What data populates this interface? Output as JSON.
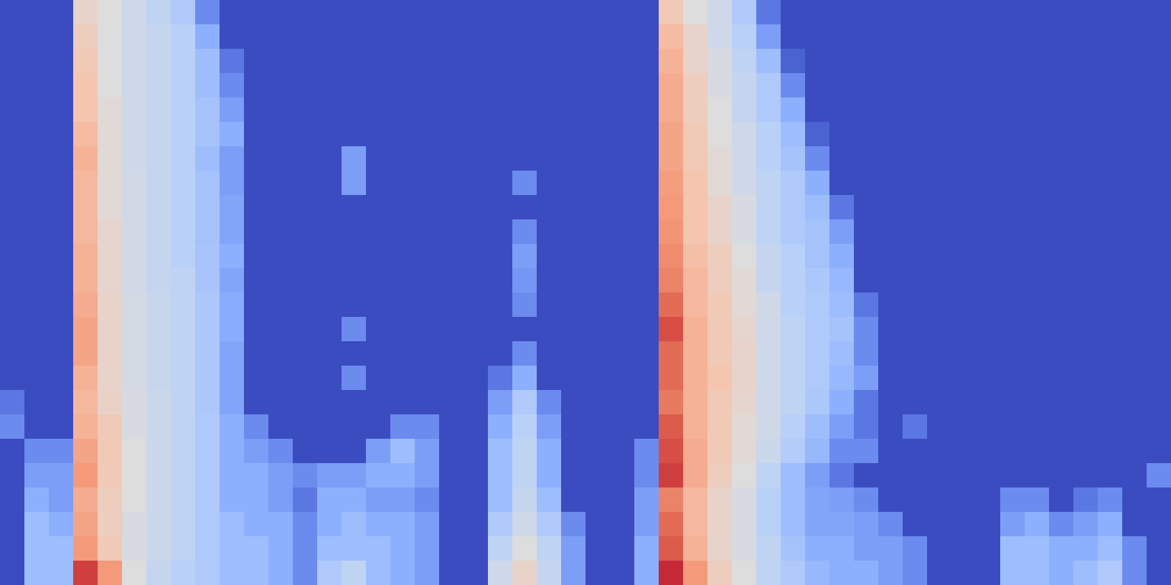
{
  "chart_data": {
    "type": "heatmap",
    "tick_labels": false,
    "xlim": [
      0,
      48
    ],
    "ylim": [
      0,
      24
    ],
    "zlim": [
      0,
      100
    ],
    "cells": [
      [
        0,
        0,
        0,
        55,
        50,
        45,
        40,
        35,
        15,
        0,
        0,
        0,
        0,
        0,
        0,
        0,
        0,
        0,
        0,
        0,
        0,
        0,
        0,
        0,
        0,
        0,
        0,
        60,
        50,
        45,
        35,
        10,
        0,
        0,
        0,
        0,
        0,
        0,
        0,
        0,
        0,
        0,
        0,
        0,
        0,
        0,
        0,
        0
      ],
      [
        0,
        0,
        0,
        58,
        50,
        45,
        42,
        38,
        25,
        0,
        0,
        0,
        0,
        0,
        0,
        0,
        0,
        0,
        0,
        0,
        0,
        0,
        0,
        0,
        0,
        0,
        0,
        65,
        55,
        45,
        38,
        20,
        0,
        0,
        0,
        0,
        0,
        0,
        0,
        0,
        0,
        0,
        0,
        0,
        0,
        0,
        0,
        0
      ],
      [
        0,
        0,
        0,
        60,
        50,
        45,
        42,
        38,
        30,
        10,
        0,
        0,
        0,
        0,
        0,
        0,
        0,
        0,
        0,
        0,
        0,
        0,
        0,
        0,
        0,
        0,
        0,
        68,
        55,
        48,
        40,
        30,
        5,
        0,
        0,
        0,
        0,
        0,
        0,
        0,
        0,
        0,
        0,
        0,
        0,
        0,
        0,
        0
      ],
      [
        0,
        0,
        0,
        62,
        50,
        45,
        42,
        38,
        30,
        15,
        0,
        0,
        0,
        0,
        0,
        0,
        0,
        0,
        0,
        0,
        0,
        0,
        0,
        0,
        0,
        0,
        0,
        70,
        58,
        48,
        42,
        35,
        15,
        0,
        0,
        0,
        0,
        0,
        0,
        0,
        0,
        0,
        0,
        0,
        0,
        0,
        0,
        0
      ],
      [
        0,
        0,
        0,
        62,
        52,
        45,
        42,
        38,
        32,
        20,
        0,
        0,
        0,
        0,
        0,
        0,
        0,
        0,
        0,
        0,
        0,
        0,
        0,
        0,
        0,
        0,
        0,
        70,
        58,
        50,
        42,
        35,
        25,
        0,
        0,
        0,
        0,
        0,
        0,
        0,
        0,
        0,
        0,
        0,
        0,
        0,
        0,
        0
      ],
      [
        0,
        0,
        0,
        65,
        52,
        45,
        42,
        38,
        32,
        25,
        0,
        0,
        0,
        0,
        0,
        0,
        0,
        0,
        0,
        0,
        0,
        0,
        0,
        0,
        0,
        0,
        0,
        72,
        60,
        50,
        45,
        38,
        30,
        5,
        0,
        0,
        0,
        0,
        0,
        0,
        0,
        0,
        0,
        0,
        0,
        0,
        0,
        0
      ],
      [
        0,
        0,
        0,
        68,
        52,
        45,
        42,
        38,
        30,
        20,
        0,
        0,
        0,
        0,
        20,
        0,
        0,
        0,
        0,
        0,
        0,
        0,
        0,
        0,
        0,
        0,
        0,
        72,
        60,
        52,
        45,
        38,
        32,
        15,
        0,
        0,
        0,
        0,
        0,
        0,
        0,
        0,
        0,
        0,
        0,
        0,
        0,
        0
      ],
      [
        0,
        0,
        0,
        66,
        52,
        46,
        42,
        38,
        32,
        20,
        0,
        0,
        0,
        0,
        20,
        0,
        0,
        0,
        0,
        0,
        0,
        15,
        0,
        0,
        0,
        0,
        0,
        74,
        62,
        52,
        45,
        40,
        35,
        25,
        0,
        0,
        0,
        0,
        0,
        0,
        0,
        0,
        0,
        0,
        0,
        0,
        0,
        0
      ],
      [
        0,
        0,
        0,
        66,
        52,
        46,
        42,
        38,
        32,
        22,
        0,
        0,
        0,
        0,
        0,
        0,
        0,
        0,
        0,
        0,
        0,
        0,
        0,
        0,
        0,
        0,
        0,
        75,
        62,
        55,
        48,
        40,
        35,
        30,
        10,
        0,
        0,
        0,
        0,
        0,
        0,
        0,
        0,
        0,
        0,
        0,
        0,
        0
      ],
      [
        0,
        0,
        0,
        66,
        54,
        46,
        42,
        38,
        32,
        22,
        0,
        0,
        0,
        0,
        0,
        0,
        0,
        0,
        0,
        0,
        0,
        15,
        0,
        0,
        0,
        0,
        0,
        76,
        62,
        55,
        48,
        40,
        35,
        32,
        20,
        0,
        0,
        0,
        0,
        0,
        0,
        0,
        0,
        0,
        0,
        0,
        0,
        0
      ],
      [
        0,
        0,
        0,
        68,
        54,
        46,
        42,
        38,
        33,
        25,
        0,
        0,
        0,
        0,
        0,
        0,
        0,
        0,
        0,
        0,
        0,
        20,
        0,
        0,
        0,
        0,
        0,
        78,
        64,
        58,
        50,
        42,
        38,
        32,
        25,
        0,
        0,
        0,
        0,
        0,
        0,
        0,
        0,
        0,
        0,
        0,
        0,
        0
      ],
      [
        0,
        0,
        0,
        68,
        54,
        46,
        42,
        40,
        33,
        22,
        0,
        0,
        0,
        0,
        0,
        0,
        0,
        0,
        0,
        0,
        0,
        18,
        0,
        0,
        0,
        0,
        0,
        80,
        66,
        58,
        52,
        42,
        38,
        34,
        28,
        0,
        0,
        0,
        0,
        0,
        0,
        0,
        0,
        0,
        0,
        0,
        0,
        0
      ],
      [
        0,
        0,
        0,
        70,
        55,
        47,
        43,
        40,
        34,
        24,
        0,
        0,
        0,
        0,
        0,
        0,
        0,
        0,
        0,
        0,
        0,
        15,
        0,
        0,
        0,
        0,
        0,
        85,
        66,
        60,
        52,
        45,
        38,
        35,
        30,
        10,
        0,
        0,
        0,
        0,
        0,
        0,
        0,
        0,
        0,
        0,
        0,
        0
      ],
      [
        0,
        0,
        0,
        72,
        55,
        47,
        43,
        40,
        34,
        24,
        0,
        0,
        0,
        0,
        15,
        0,
        0,
        0,
        0,
        0,
        0,
        0,
        0,
        0,
        0,
        0,
        0,
        90,
        68,
        60,
        54,
        45,
        40,
        35,
        32,
        15,
        0,
        0,
        0,
        0,
        0,
        0,
        0,
        0,
        0,
        0,
        0,
        0
      ],
      [
        0,
        0,
        0,
        72,
        55,
        47,
        43,
        40,
        34,
        22,
        0,
        0,
        0,
        0,
        0,
        0,
        0,
        0,
        0,
        0,
        0,
        15,
        0,
        0,
        0,
        0,
        0,
        85,
        68,
        60,
        55,
        45,
        40,
        35,
        30,
        15,
        0,
        0,
        0,
        0,
        0,
        0,
        0,
        0,
        0,
        0,
        0,
        0
      ],
      [
        0,
        0,
        0,
        68,
        55,
        47,
        43,
        40,
        34,
        22,
        0,
        0,
        0,
        0,
        15,
        0,
        0,
        0,
        0,
        0,
        10,
        25,
        0,
        0,
        0,
        0,
        0,
        85,
        68,
        62,
        55,
        45,
        40,
        35,
        28,
        20,
        0,
        0,
        0,
        0,
        0,
        0,
        0,
        0,
        0,
        0,
        0,
        0
      ],
      [
        10,
        0,
        0,
        66,
        56,
        48,
        44,
        40,
        34,
        22,
        0,
        0,
        0,
        0,
        0,
        0,
        0,
        0,
        0,
        0,
        20,
        35,
        15,
        0,
        0,
        0,
        0,
        82,
        68,
        60,
        54,
        45,
        40,
        34,
        25,
        10,
        0,
        0,
        0,
        0,
        0,
        0,
        0,
        0,
        0,
        0,
        0,
        0
      ],
      [
        15,
        0,
        0,
        68,
        60,
        48,
        44,
        40,
        35,
        25,
        15,
        0,
        0,
        0,
        0,
        0,
        15,
        15,
        0,
        0,
        25,
        38,
        20,
        0,
        0,
        0,
        0,
        88,
        68,
        60,
        52,
        45,
        38,
        30,
        20,
        10,
        0,
        10,
        0,
        0,
        0,
        0,
        0,
        0,
        0,
        0,
        0,
        0
      ],
      [
        0,
        15,
        15,
        72,
        60,
        50,
        44,
        40,
        35,
        25,
        20,
        15,
        0,
        0,
        0,
        20,
        30,
        20,
        0,
        0,
        30,
        40,
        25,
        0,
        0,
        0,
        15,
        90,
        70,
        60,
        52,
        44,
        36,
        28,
        15,
        15,
        0,
        0,
        0,
        0,
        0,
        0,
        0,
        0,
        0,
        0,
        0,
        0
      ],
      [
        0,
        20,
        20,
        75,
        60,
        50,
        44,
        40,
        35,
        25,
        25,
        20,
        15,
        20,
        20,
        25,
        25,
        20,
        0,
        0,
        30,
        40,
        25,
        0,
        0,
        0,
        15,
        92,
        70,
        58,
        50,
        40,
        30,
        20,
        10,
        0,
        0,
        0,
        0,
        0,
        0,
        0,
        0,
        0,
        0,
        0,
        0,
        15
      ],
      [
        0,
        25,
        20,
        70,
        58,
        50,
        44,
        40,
        35,
        25,
        25,
        20,
        10,
        25,
        25,
        20,
        20,
        15,
        0,
        0,
        30,
        42,
        30,
        0,
        0,
        0,
        20,
        80,
        66,
        55,
        48,
        38,
        30,
        22,
        20,
        15,
        0,
        0,
        0,
        0,
        0,
        15,
        15,
        0,
        10,
        15,
        0,
        0
      ],
      [
        0,
        30,
        25,
        72,
        58,
        48,
        44,
        40,
        35,
        30,
        25,
        25,
        15,
        25,
        30,
        25,
        25,
        20,
        0,
        0,
        35,
        45,
        35,
        15,
        0,
        0,
        20,
        85,
        66,
        55,
        48,
        38,
        30,
        22,
        22,
        20,
        15,
        0,
        0,
        0,
        0,
        20,
        25,
        15,
        20,
        25,
        0,
        0
      ],
      [
        0,
        30,
        30,
        75,
        60,
        48,
        44,
        40,
        35,
        30,
        30,
        25,
        15,
        30,
        30,
        30,
        25,
        20,
        0,
        0,
        40,
        50,
        40,
        20,
        0,
        0,
        25,
        88,
        68,
        55,
        48,
        40,
        32,
        25,
        25,
        20,
        20,
        15,
        0,
        0,
        0,
        30,
        30,
        25,
        25,
        30,
        15,
        0
      ],
      [
        0,
        30,
        30,
        92,
        75,
        50,
        42,
        38,
        35,
        30,
        30,
        25,
        15,
        35,
        40,
        30,
        25,
        20,
        0,
        0,
        45,
        55,
        42,
        20,
        0,
        0,
        25,
        95,
        75,
        58,
        50,
        40,
        35,
        28,
        25,
        25,
        20,
        15,
        0,
        0,
        0,
        30,
        30,
        25,
        30,
        35,
        15,
        0
      ]
    ]
  }
}
